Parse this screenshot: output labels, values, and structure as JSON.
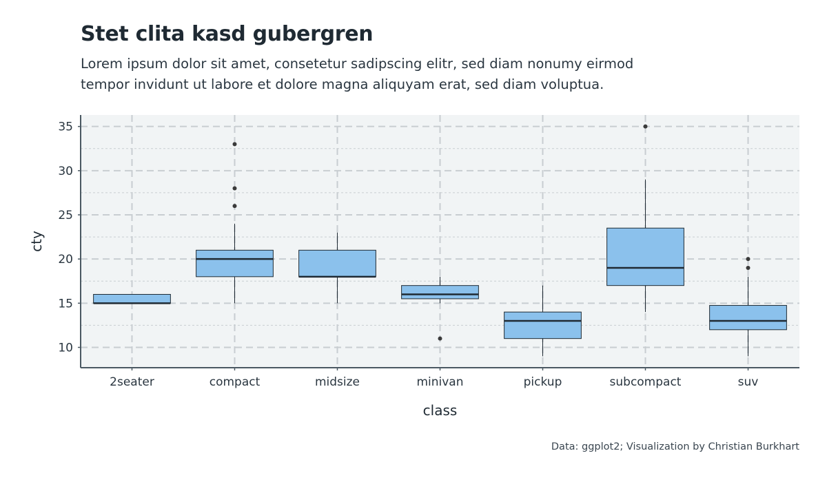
{
  "title": "Stet clita kasd gubergren",
  "subtitle": "Lorem ipsum dolor sit amet, consetetur sadipscing elitr, sed diam nonumy eirmod tempor invidunt ut labore et dolore magna aliquyam erat, sed diam voluptua.",
  "caption": "Data: ggplot2; Visualization by Christian Burkhart",
  "chart_data": {
    "type": "boxplot",
    "xlabel": "class",
    "ylabel": "cty",
    "ylim": [
      7.7,
      36.3
    ],
    "yticks": [
      10,
      15,
      20,
      25,
      30,
      35
    ],
    "grid": true,
    "colors": {
      "box_fill": "#8bc1ec",
      "box_stroke": "#1f2a33",
      "panel_bg": "#f1f4f5",
      "grid": "#c8cdd1",
      "axis": "#4a5862"
    },
    "categories": [
      "2seater",
      "compact",
      "midsize",
      "minivan",
      "pickup",
      "subcompact",
      "suv"
    ],
    "boxes": [
      {
        "category": "2seater",
        "min": 15,
        "q1": 15,
        "median": 15,
        "q3": 16,
        "max": 16,
        "outliers": []
      },
      {
        "category": "compact",
        "min": 15,
        "q1": 18,
        "median": 20,
        "q3": 21,
        "max": 24,
        "outliers": [
          26,
          28,
          33
        ]
      },
      {
        "category": "midsize",
        "min": 15,
        "q1": 18,
        "median": 18,
        "q3": 21,
        "max": 23,
        "outliers": []
      },
      {
        "category": "minivan",
        "min": 15,
        "q1": 15.5,
        "median": 16,
        "q3": 17,
        "max": 18,
        "outliers": [
          11
        ]
      },
      {
        "category": "pickup",
        "min": 9,
        "q1": 11,
        "median": 13,
        "q3": 14,
        "max": 17,
        "outliers": []
      },
      {
        "category": "subcompact",
        "min": 14,
        "q1": 17,
        "median": 19,
        "q3": 23.5,
        "max": 29,
        "outliers": [
          35
        ]
      },
      {
        "category": "suv",
        "min": 9,
        "q1": 12,
        "median": 13,
        "q3": 14.75,
        "max": 18,
        "outliers": [
          19,
          20
        ]
      }
    ]
  }
}
